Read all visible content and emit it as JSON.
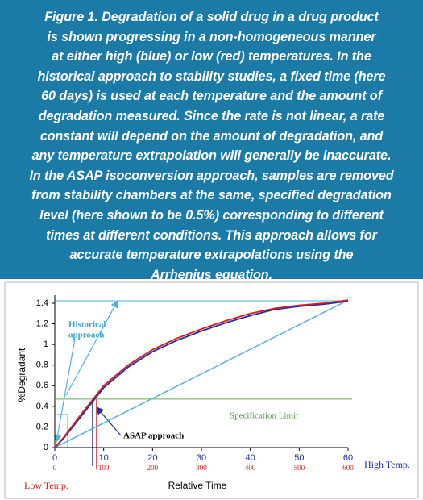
{
  "caption": [
    "Figure 1. Degradation of a solid drug in a drug product",
    "is shown progressing in a non-homogeneous manner",
    "at either high (blue) or low (red) temperatures. In the",
    "historical approach to stability studies, a fixed time (here",
    "60 days) is used at each temperature and the amount of",
    "degradation measured.  Since the rate is not linear, a rate",
    "constant will depend on the amount of degradation, and",
    "any temperature extrapolation will generally be inaccurate.",
    "In the ASAP isoconversion approach, samples are removed",
    "from stability chambers at the same, specified degradation",
    "level (here shown to be 0.5%) corresponding to different",
    "times at different conditions.  This approach allows for",
    "accurate temperature extrapolations using the",
    "Arrhenius equation."
  ],
  "chart_data": {
    "type": "line",
    "xlabel": "Relative Time",
    "ylabel": "%Degradant",
    "x_axis_label": "High Temp.",
    "x2_axis_label": "Low Temp.",
    "xlim": [
      0,
      60
    ],
    "xticks": [
      0,
      10,
      20,
      30,
      40,
      50,
      60
    ],
    "x2lim": [
      0,
      600
    ],
    "x2ticks": [
      0,
      100,
      200,
      300,
      400,
      500,
      600
    ],
    "ylim": [
      0,
      1.4
    ],
    "yticks": [
      0,
      0.2,
      0.4,
      0.6,
      0.8,
      1,
      1.2,
      1.4
    ],
    "series": [
      {
        "color": "#1f2fa8",
        "x": [
          0,
          2,
          5,
          8,
          10,
          15,
          20,
          25,
          30,
          35,
          40,
          45,
          50,
          55,
          60
        ],
        "values": [
          0,
          0.1,
          0.28,
          0.46,
          0.58,
          0.78,
          0.93,
          1.04,
          1.13,
          1.21,
          1.28,
          1.34,
          1.37,
          1.39,
          1.42
        ]
      },
      {
        "color": "#d42020",
        "axis": "x2",
        "x": [
          0,
          20,
          50,
          80,
          100,
          150,
          200,
          250,
          300,
          350,
          400,
          450,
          500,
          550,
          600
        ],
        "values": [
          0,
          0.11,
          0.3,
          0.48,
          0.6,
          0.8,
          0.95,
          1.06,
          1.15,
          1.23,
          1.3,
          1.35,
          1.38,
          1.4,
          1.43
        ]
      }
    ],
    "linear_reference": {
      "color": "#4fb3d9",
      "x": [
        0,
        60
      ],
      "values": [
        0,
        1.43
      ]
    },
    "spec_limit": {
      "value": 0.47,
      "label": "Specification Limit",
      "color": "#6aaa5a"
    },
    "annotations": {
      "historical": [
        "Historical",
        "approach"
      ],
      "asap": "ASAP approach"
    }
  }
}
